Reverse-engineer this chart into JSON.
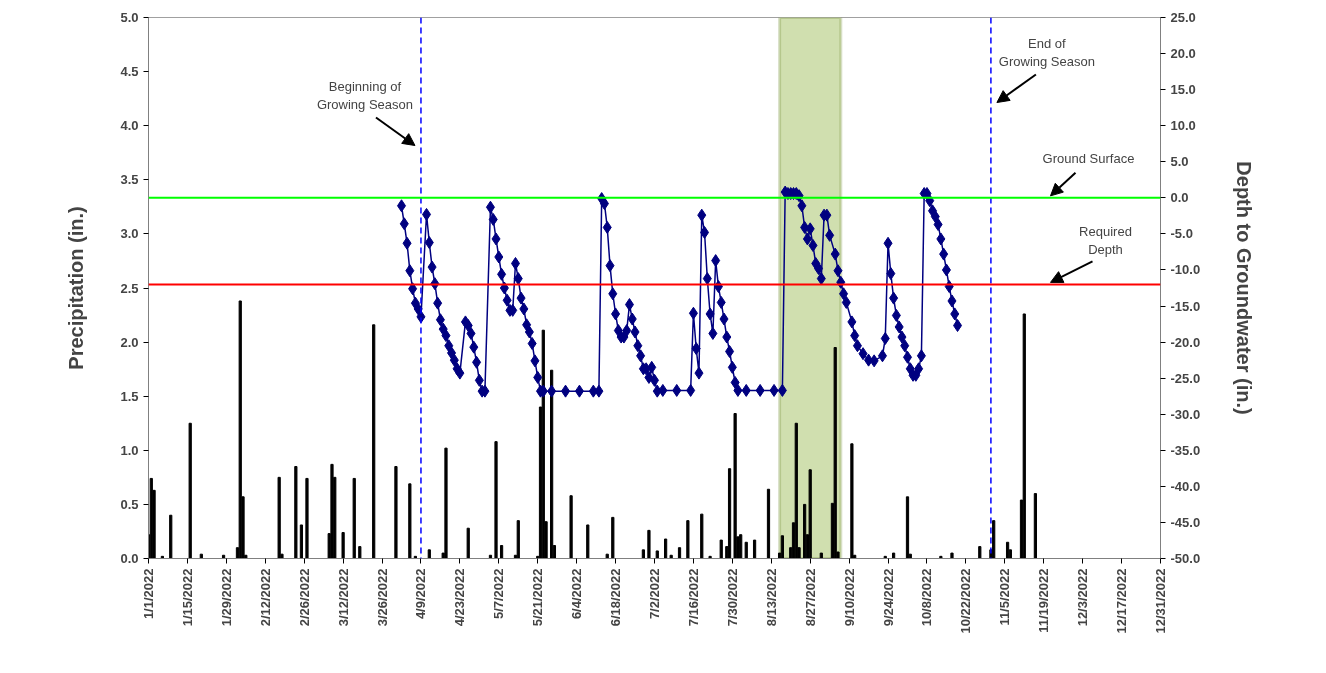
{
  "chart_data": {
    "type": "bar",
    "ylabel": "Precipitation (in.)",
    "y2label": "Depth to Groundwater (in.)",
    "xlim": [
      "2022-01-01",
      "2022-12-31"
    ],
    "xticks": [
      {
        "value": "2022-01-01",
        "label": "1/1/2022"
      },
      {
        "value": "2022-01-15",
        "label": "1/15/2022"
      },
      {
        "value": "2022-01-29",
        "label": "1/29/2022"
      },
      {
        "value": "2022-02-12",
        "label": "2/12/2022"
      },
      {
        "value": "2022-02-26",
        "label": "2/26/2022"
      },
      {
        "value": "2022-03-12",
        "label": "3/12/2022"
      },
      {
        "value": "2022-03-26",
        "label": "3/26/2022"
      },
      {
        "value": "2022-04-09",
        "label": "4/9/2022"
      },
      {
        "value": "2022-04-23",
        "label": "4/23/2022"
      },
      {
        "value": "2022-05-07",
        "label": "5/7/2022"
      },
      {
        "value": "2022-05-21",
        "label": "5/21/2022"
      },
      {
        "value": "2022-06-04",
        "label": "6/4/2022"
      },
      {
        "value": "2022-06-18",
        "label": "6/18/2022"
      },
      {
        "value": "2022-07-02",
        "label": "7/2/2022"
      },
      {
        "value": "2022-07-16",
        "label": "7/16/2022"
      },
      {
        "value": "2022-07-30",
        "label": "7/30/2022"
      },
      {
        "value": "2022-08-13",
        "label": "8/13/2022"
      },
      {
        "value": "2022-08-27",
        "label": "8/27/2022"
      },
      {
        "value": "2022-09-10",
        "label": "9/10/2022"
      },
      {
        "value": "2022-09-24",
        "label": "9/24/2022"
      },
      {
        "value": "2022-10-08",
        "label": "10/8/2022"
      },
      {
        "value": "2022-10-22",
        "label": "10/22/2022"
      },
      {
        "value": "2022-11-05",
        "label": "11/5/2022"
      },
      {
        "value": "2022-11-19",
        "label": "11/19/2022"
      },
      {
        "value": "2022-12-03",
        "label": "12/3/2022"
      },
      {
        "value": "2022-12-17",
        "label": "12/17/2022"
      },
      {
        "value": "2022-12-31",
        "label": "12/31/2022"
      }
    ],
    "ylim": [
      0,
      5
    ],
    "yticks": [
      {
        "value": 0,
        "label": "0.0"
      },
      {
        "value": 0.5,
        "label": "0.5"
      },
      {
        "value": 1,
        "label": "1.0"
      },
      {
        "value": 1.5,
        "label": "1.5"
      },
      {
        "value": 2,
        "label": "2.0"
      },
      {
        "value": 2.5,
        "label": "2.5"
      },
      {
        "value": 3,
        "label": "3.0"
      },
      {
        "value": 3.5,
        "label": "3.5"
      },
      {
        "value": 4,
        "label": "4.0"
      },
      {
        "value": 4.5,
        "label": "4.5"
      },
      {
        "value": 5,
        "label": "5.0"
      }
    ],
    "y2lim": [
      -50,
      25
    ],
    "y2ticks": [
      {
        "value": -50,
        "label": "-50.0"
      },
      {
        "value": -45,
        "label": "-45.0"
      },
      {
        "value": -40,
        "label": "-40.0"
      },
      {
        "value": -35,
        "label": "-35.0"
      },
      {
        "value": -30,
        "label": "-30.0"
      },
      {
        "value": -25,
        "label": "-25.0"
      },
      {
        "value": -20,
        "label": "-20.0"
      },
      {
        "value": -15,
        "label": "-15.0"
      },
      {
        "value": -10,
        "label": "-10.0"
      },
      {
        "value": -5,
        "label": "-5.0"
      },
      {
        "value": 0,
        "label": "0.0"
      },
      {
        "value": 5,
        "label": "5.0"
      },
      {
        "value": 10,
        "label": "10.0"
      },
      {
        "value": 15,
        "label": "15.0"
      },
      {
        "value": 20,
        "label": "20.0"
      },
      {
        "value": 25,
        "label": "25.0"
      }
    ],
    "series": [
      {
        "color": "#000000",
        "x": [
          "2022-01-01",
          "2022-01-02",
          "2022-01-03",
          "2022-01-06",
          "2022-01-09",
          "2022-01-16",
          "2022-01-20",
          "2022-01-28",
          "2022-02-02",
          "2022-02-03",
          "2022-02-04",
          "2022-02-05",
          "2022-02-17",
          "2022-02-18",
          "2022-02-23",
          "2022-02-25",
          "2022-02-27",
          "2022-03-07",
          "2022-03-08",
          "2022-03-09",
          "2022-03-12",
          "2022-03-16",
          "2022-03-18",
          "2022-03-23",
          "2022-03-31",
          "2022-04-05",
          "2022-04-07",
          "2022-04-12",
          "2022-04-17",
          "2022-04-18",
          "2022-04-26",
          "2022-05-04",
          "2022-05-06",
          "2022-05-08",
          "2022-05-13",
          "2022-05-14",
          "2022-05-21",
          "2022-05-22",
          "2022-05-23",
          "2022-05-24",
          "2022-05-26",
          "2022-05-27",
          "2022-06-02",
          "2022-06-08",
          "2022-06-15",
          "2022-06-17",
          "2022-06-28",
          "2022-06-30",
          "2022-07-03",
          "2022-07-06",
          "2022-07-08",
          "2022-07-11",
          "2022-07-14",
          "2022-07-19",
          "2022-07-22",
          "2022-07-26",
          "2022-07-28",
          "2022-07-29",
          "2022-07-31",
          "2022-08-01",
          "2022-08-02",
          "2022-08-04",
          "2022-08-07",
          "2022-08-12",
          "2022-08-16",
          "2022-08-17",
          "2022-08-20",
          "2022-08-21",
          "2022-08-22",
          "2022-08-23",
          "2022-08-25",
          "2022-08-26",
          "2022-08-27",
          "2022-08-31",
          "2022-09-04",
          "2022-09-05",
          "2022-09-06",
          "2022-09-11",
          "2022-09-12",
          "2022-09-23",
          "2022-09-26",
          "2022-10-01",
          "2022-10-02",
          "2022-10-13",
          "2022-10-17",
          "2022-10-27",
          "2022-10-31",
          "2022-11-01",
          "2022-11-06",
          "2022-11-07",
          "2022-11-11",
          "2022-11-12",
          "2022-11-16"
        ],
        "values": [
          0.22,
          0.74,
          0.63,
          0.02,
          0.4,
          1.25,
          0.04,
          0.03,
          0.1,
          2.38,
          0.57,
          0.03,
          0.75,
          0.04,
          0.85,
          0.31,
          0.74,
          0.23,
          0.87,
          0.75,
          0.24,
          0.74,
          0.11,
          2.16,
          0.85,
          0.69,
          0.02,
          0.08,
          0.05,
          1.02,
          0.28,
          0.03,
          1.08,
          0.12,
          0.03,
          0.35,
          0.02,
          1.4,
          2.11,
          0.34,
          1.74,
          0.12,
          0.58,
          0.31,
          0.04,
          0.38,
          0.08,
          0.26,
          0.07,
          0.18,
          0.03,
          0.1,
          0.35,
          0.41,
          0.02,
          0.17,
          0.11,
          0.83,
          1.34,
          0.2,
          0.22,
          0.15,
          0.17,
          0.64,
          0.05,
          0.21,
          0.1,
          0.33,
          1.25,
          0.1,
          0.5,
          0.22,
          0.82,
          0.05,
          0.51,
          1.95,
          0.06,
          1.06,
          0.03,
          0.02,
          0.05,
          0.57,
          0.04,
          0.02,
          0.05,
          0.11,
          0.08,
          0.35,
          0.15,
          0.08,
          0.54,
          2.26,
          0.6
        ]
      },
      {
        "type": "line",
        "axis": "y2",
        "color": "#000080",
        "marker": "diamond",
        "line_style": "solid",
        "x": [
          "2022-04-02",
          "2022-04-03",
          "2022-04-04",
          "2022-04-05",
          "2022-04-06",
          "2022-04-07",
          "2022-04-08",
          "2022-04-09",
          "2022-04-11",
          "2022-04-12",
          "2022-04-13",
          "2022-04-14",
          "2022-04-15",
          "2022-04-16",
          "2022-04-17",
          "2022-04-18",
          "2022-04-19",
          "2022-04-20",
          "2022-04-21",
          "2022-04-22",
          "2022-04-23",
          "2022-04-25",
          "2022-04-26",
          "2022-04-27",
          "2022-04-28",
          "2022-04-29",
          "2022-04-30",
          "2022-05-01",
          "2022-05-02",
          "2022-05-04",
          "2022-05-05",
          "2022-05-06",
          "2022-05-07",
          "2022-05-08",
          "2022-05-09",
          "2022-05-10",
          "2022-05-11",
          "2022-05-12",
          "2022-05-13",
          "2022-05-14",
          "2022-05-15",
          "2022-05-16",
          "2022-05-17",
          "2022-05-18",
          "2022-05-19",
          "2022-05-20",
          "2022-05-21",
          "2022-05-22",
          "2022-05-23",
          "2022-05-26",
          "2022-05-31",
          "2022-06-05",
          "2022-06-10",
          "2022-06-12",
          "2022-06-13",
          "2022-06-14",
          "2022-06-15",
          "2022-06-16",
          "2022-06-17",
          "2022-06-18",
          "2022-06-19",
          "2022-06-20",
          "2022-06-21",
          "2022-06-22",
          "2022-06-23",
          "2022-06-24",
          "2022-06-25",
          "2022-06-26",
          "2022-06-27",
          "2022-06-28",
          "2022-06-29",
          "2022-06-30",
          "2022-07-01",
          "2022-07-02",
          "2022-07-03",
          "2022-07-05",
          "2022-07-10",
          "2022-07-15",
          "2022-07-16",
          "2022-07-17",
          "2022-07-18",
          "2022-07-19",
          "2022-07-20",
          "2022-07-21",
          "2022-07-22",
          "2022-07-23",
          "2022-07-24",
          "2022-07-25",
          "2022-07-26",
          "2022-07-27",
          "2022-07-28",
          "2022-07-29",
          "2022-07-30",
          "2022-07-31",
          "2022-08-01",
          "2022-08-04",
          "2022-08-09",
          "2022-08-14",
          "2022-08-17",
          "2022-08-18",
          "2022-08-19",
          "2022-08-20",
          "2022-08-21",
          "2022-08-22",
          "2022-08-23",
          "2022-08-24",
          "2022-08-25",
          "2022-08-26",
          "2022-08-27",
          "2022-08-28",
          "2022-08-29",
          "2022-08-30",
          "2022-08-31",
          "2022-09-01",
          "2022-09-02",
          "2022-09-03",
          "2022-09-05",
          "2022-09-06",
          "2022-09-07",
          "2022-09-08",
          "2022-09-09",
          "2022-09-11",
          "2022-09-12",
          "2022-09-13",
          "2022-09-15",
          "2022-09-17",
          "2022-09-19",
          "2022-09-22",
          "2022-09-23",
          "2022-09-24",
          "2022-09-25",
          "2022-09-26",
          "2022-09-27",
          "2022-09-28",
          "2022-09-29",
          "2022-09-30",
          "2022-10-01",
          "2022-10-02",
          "2022-10-03",
          "2022-10-04",
          "2022-10-05",
          "2022-10-06",
          "2022-10-07",
          "2022-10-08",
          "2022-10-09",
          "2022-10-10",
          "2022-10-11",
          "2022-10-12",
          "2022-10-13",
          "2022-10-14",
          "2022-10-15",
          "2022-10-16",
          "2022-10-17",
          "2022-10-18",
          "2022-10-19"
        ],
        "values": [
          -1.1,
          -3.6,
          -6.3,
          -10.1,
          -12.6,
          -14.6,
          -15.4,
          -16.5,
          -2.3,
          -6.2,
          -9.6,
          -11.9,
          -14.6,
          -16.9,
          -18.2,
          -19.1,
          -20.5,
          -21.5,
          -22.5,
          -23.7,
          -24.3,
          -17.2,
          -17.7,
          -18.8,
          -20.7,
          -22.8,
          -25.3,
          -26.8,
          -26.8,
          -1.3,
          -3.0,
          -5.7,
          -8.2,
          -10.6,
          -12.5,
          -14.2,
          -15.6,
          -15.6,
          -9.1,
          -11.2,
          -13.9,
          -15.4,
          -17.6,
          -18.6,
          -20.2,
          -22.6,
          -24.9,
          -26.8,
          -26.8,
          -26.8,
          -26.8,
          -26.8,
          -26.8,
          -26.8,
          -0.1,
          -0.8,
          -4.1,
          -9.4,
          -13.3,
          -16.1,
          -18.4,
          -19.3,
          -19.3,
          -18.4,
          -14.8,
          -16.8,
          -18.6,
          -20.5,
          -21.9,
          -23.7,
          -23.7,
          -24.9,
          -23.5,
          -25.3,
          -26.8,
          -26.7,
          -26.7,
          -26.7,
          -16.0,
          -20.9,
          -24.3,
          -2.4,
          -4.8,
          -11.2,
          -16.1,
          -18.8,
          -8.7,
          -12.3,
          -14.5,
          -16.8,
          -19.3,
          -21.3,
          -23.5,
          -25.6,
          -26.7,
          -26.7,
          -26.7,
          -26.7,
          -26.7,
          0.8,
          0.6,
          0.6,
          0.6,
          0.6,
          0.3,
          -1.1,
          -4.1,
          -5.7,
          -4.3,
          -6.6,
          -9.1,
          -9.8,
          -11.2,
          -2.4,
          -2.4,
          -5.2,
          -7.8,
          -10.1,
          -11.7,
          -13.3,
          -14.5,
          -17.2,
          -19.1,
          -20.5,
          -21.6,
          -22.5,
          -22.6,
          -21.9,
          -19.5,
          -6.3,
          -10.5,
          -13.9,
          -16.3,
          -17.9,
          -19.3,
          -20.5,
          -22.1,
          -23.7,
          -24.6,
          -24.6,
          -23.7,
          -21.9,
          0.6,
          0.6,
          -0.4,
          -1.8,
          -2.6,
          -3.7,
          -5.7,
          -7.8,
          -10.0,
          -12.3,
          -14.3,
          -16.1,
          -17.7
        ]
      }
    ],
    "ref_lines": [
      {
        "axis": "x",
        "value": "2022-04-09",
        "label": "Beginning of\nGrowing Season",
        "color": "#0000ff",
        "line_style": "dashed"
      },
      {
        "axis": "x",
        "value": "2022-10-31",
        "label": "End of\nGrowing Season",
        "color": "#0000ff",
        "line_style": "dashed"
      },
      {
        "axis": "y2",
        "value": 0,
        "label": "Ground Surface",
        "color": "#00ff00",
        "line_style": "solid"
      },
      {
        "axis": "y2",
        "value": -12,
        "label": "Required\nDepth",
        "color": "#ff0000",
        "line_style": "solid"
      }
    ],
    "bands": [
      {
        "axis": "x",
        "from": "2022-08-16",
        "to": "2022-09-07",
        "color": "#c4d79b"
      }
    ]
  }
}
